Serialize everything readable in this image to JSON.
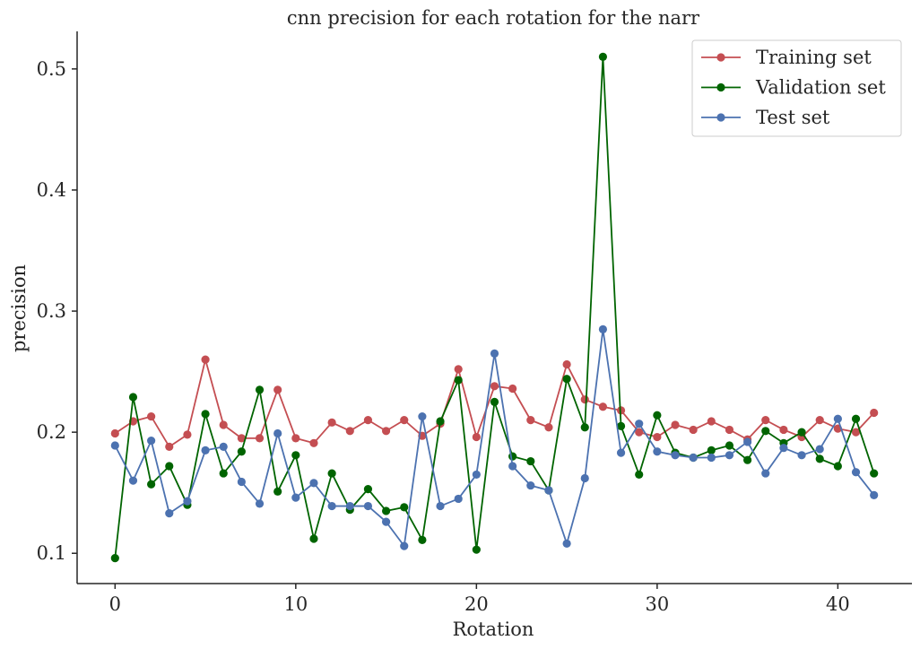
{
  "chart_data": {
    "type": "line",
    "title": "cnn precision for each rotation for the narr",
    "xlabel": "Rotation",
    "ylabel": "precision",
    "xlim": [
      -2.1,
      44.1
    ],
    "ylim": [
      0.075,
      0.531
    ],
    "xticks": [
      0,
      10,
      20,
      30,
      40
    ],
    "yticks": [
      0.1,
      0.2,
      0.3,
      0.4,
      0.5
    ],
    "xtick_labels": [
      "0",
      "10",
      "20",
      "30",
      "40"
    ],
    "ytick_labels": [
      "0.1",
      "0.2",
      "0.3",
      "0.4",
      "0.5"
    ],
    "grid": false,
    "legend_position": "top-right",
    "x": [
      0,
      1,
      2,
      3,
      4,
      5,
      6,
      7,
      8,
      9,
      10,
      11,
      12,
      13,
      14,
      15,
      16,
      17,
      18,
      19,
      20,
      21,
      22,
      23,
      24,
      25,
      26,
      27,
      28,
      29,
      30,
      31,
      32,
      33,
      34,
      35,
      36,
      37,
      38,
      39,
      40,
      41,
      42
    ],
    "series": [
      {
        "name": "Training set",
        "color": "#c44e52",
        "values": [
          0.199,
          0.209,
          0.213,
          0.188,
          0.198,
          0.26,
          0.206,
          0.195,
          0.195,
          0.235,
          0.195,
          0.191,
          0.208,
          0.201,
          0.21,
          0.201,
          0.21,
          0.197,
          0.207,
          0.252,
          0.196,
          0.238,
          0.236,
          0.21,
          0.204,
          0.256,
          0.227,
          0.221,
          0.218,
          0.2,
          0.196,
          0.206,
          0.202,
          0.209,
          0.202,
          0.194,
          0.21,
          0.202,
          0.196,
          0.21,
          0.203,
          0.2,
          0.216
        ]
      },
      {
        "name": "Validation set",
        "color": "#006400",
        "values": [
          0.096,
          0.229,
          0.157,
          0.172,
          0.14,
          0.215,
          0.166,
          0.184,
          0.235,
          0.151,
          0.181,
          0.112,
          0.166,
          0.136,
          0.153,
          0.135,
          0.138,
          0.111,
          0.209,
          0.243,
          0.103,
          0.225,
          0.18,
          0.176,
          0.152,
          0.244,
          0.204,
          0.51,
          0.205,
          0.165,
          0.214,
          0.183,
          0.179,
          0.185,
          0.189,
          0.177,
          0.201,
          0.191,
          0.2,
          0.178,
          0.172,
          0.211,
          0.166
        ]
      },
      {
        "name": "Test set",
        "color": "#4c72b0",
        "values": [
          0.189,
          0.16,
          0.193,
          0.133,
          0.143,
          0.185,
          0.188,
          0.159,
          0.141,
          0.199,
          0.146,
          0.158,
          0.139,
          0.139,
          0.139,
          0.126,
          0.106,
          0.213,
          0.139,
          0.145,
          0.165,
          0.265,
          0.172,
          0.156,
          0.152,
          0.108,
          0.162,
          0.285,
          0.183,
          0.207,
          0.184,
          0.181,
          0.179,
          0.179,
          0.181,
          0.192,
          0.166,
          0.187,
          0.181,
          0.186,
          0.211,
          0.167,
          0.148
        ]
      }
    ]
  }
}
